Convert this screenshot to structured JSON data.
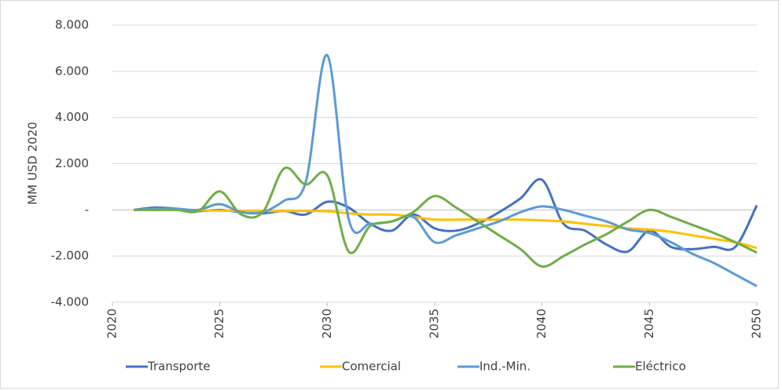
{
  "chart_data": {
    "type": "line",
    "y_label": "MM USD 2020",
    "x": [
      2021,
      2022,
      2023,
      2024,
      2025,
      2026,
      2027,
      2028,
      2029,
      2030,
      2031,
      2032,
      2033,
      2034,
      2035,
      2036,
      2037,
      2038,
      2039,
      2040,
      2041,
      2042,
      2043,
      2044,
      2045,
      2046,
      2047,
      2048,
      2049,
      2050
    ],
    "series": [
      {
        "name": "Transporte",
        "color": "#4472c4",
        "values": [
          0,
          100,
          50,
          -50,
          0,
          -100,
          -150,
          -50,
          -200,
          350,
          100,
          -600,
          -900,
          -200,
          -800,
          -900,
          -600,
          -100,
          500,
          1300,
          -600,
          -900,
          -1500,
          -1800,
          -900,
          -1600,
          -1700,
          -1600,
          -1600,
          200
        ]
      },
      {
        "name": "Comercial",
        "color": "#ffc000",
        "values": [
          0,
          0,
          0,
          -20,
          -30,
          -40,
          -50,
          -50,
          -50,
          -60,
          -150,
          -200,
          -200,
          -300,
          -420,
          -420,
          -420,
          -420,
          -420,
          -450,
          -500,
          -600,
          -700,
          -800,
          -850,
          -950,
          -1100,
          -1250,
          -1400,
          -1650
        ]
      },
      {
        "name": "Ind.-Min.",
        "color": "#5b9bd5",
        "values": [
          0,
          50,
          50,
          0,
          250,
          -100,
          -100,
          400,
          1200,
          6700,
          -400,
          -600,
          -500,
          -300,
          -1400,
          -1100,
          -800,
          -500,
          -100,
          150,
          0,
          -250,
          -500,
          -850,
          -1000,
          -1400,
          -1900,
          -2300,
          -2800,
          -3300
        ]
      },
      {
        "name": "Eléctrico",
        "color": "#70ad47",
        "values": [
          0,
          0,
          0,
          -50,
          800,
          -200,
          -100,
          1800,
          1100,
          1500,
          -1800,
          -700,
          -500,
          -100,
          600,
          100,
          -500,
          -1100,
          -1700,
          -2450,
          -2000,
          -1500,
          -1050,
          -500,
          0,
          -300,
          -650,
          -1000,
          -1400,
          -1850
        ]
      }
    ],
    "xlim": [
      2020,
      2050
    ],
    "xticks": [
      2020,
      2025,
      2030,
      2035,
      2040,
      2045,
      2050
    ],
    "ylim": [
      -4000,
      8000
    ],
    "yticks": [
      {
        "value": -4000,
        "label": "-4.000"
      },
      {
        "value": -2000,
        "label": "-2.000"
      },
      {
        "value": 0,
        "label": "-"
      },
      {
        "value": 2000,
        "label": "2.000"
      },
      {
        "value": 4000,
        "label": "4.000"
      },
      {
        "value": 6000,
        "label": "6.000"
      },
      {
        "value": 8000,
        "label": "8.000"
      }
    ],
    "grid": true,
    "smooth": true,
    "legend": "bottom"
  }
}
